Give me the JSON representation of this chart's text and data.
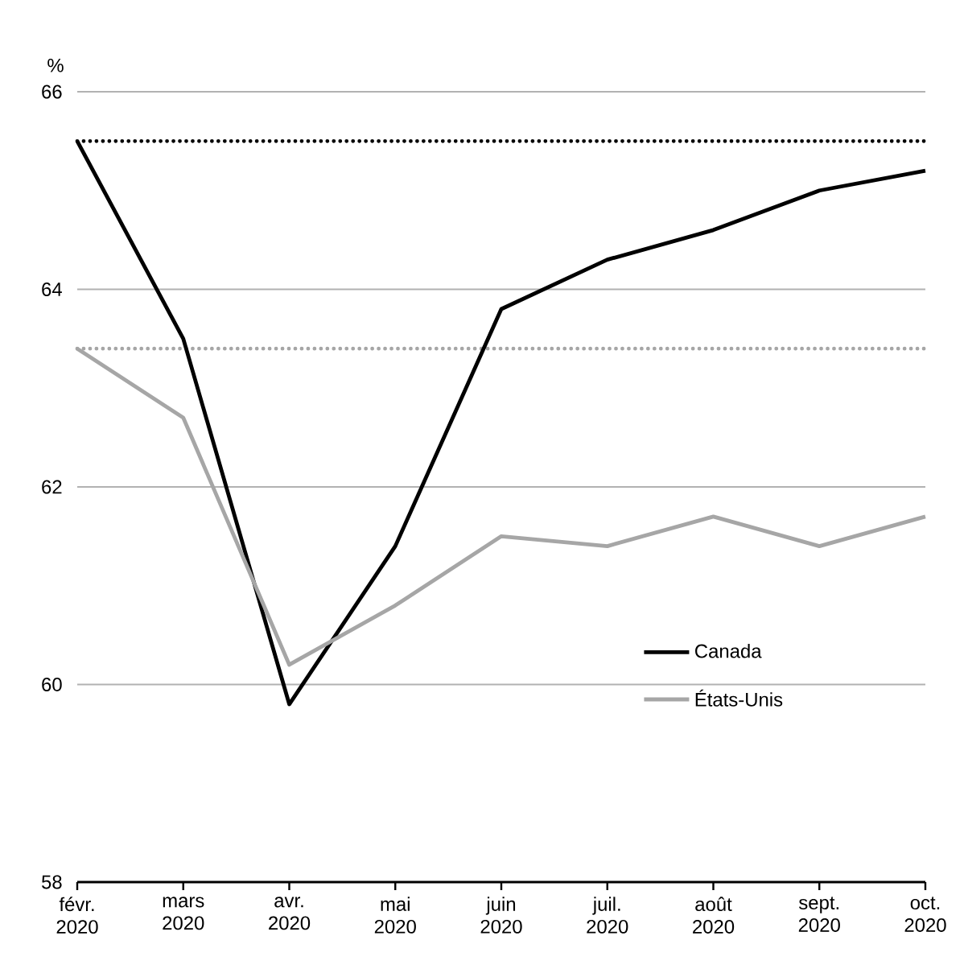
{
  "chart_data": {
    "type": "line",
    "ylabel": "%",
    "categories": [
      "févr. 2020",
      "mars 2020",
      "avr. 2020",
      "mai 2020",
      "juin 2020",
      "juil. 2020",
      "août 2020",
      "sept. 2020",
      "oct. 2020"
    ],
    "series": [
      {
        "name": "Canada",
        "color": "#000000",
        "values": [
          65.5,
          63.5,
          59.8,
          61.4,
          63.8,
          64.3,
          64.6,
          65.0,
          65.2
        ]
      },
      {
        "name": "États-Unis",
        "color": "#a6a6a6",
        "values": [
          63.4,
          62.7,
          60.2,
          60.8,
          61.5,
          61.4,
          61.7,
          61.4,
          61.7
        ]
      }
    ],
    "ylim": [
      58,
      66
    ],
    "yticks": [
      58,
      60,
      62,
      64,
      66
    ],
    "ref_lines": [
      {
        "axis": "y",
        "value": 65.5,
        "color": "#000000",
        "line_style": "dotted"
      },
      {
        "axis": "y",
        "value": 63.4,
        "color": "#a6a6a6",
        "line_style": "dotted"
      }
    ],
    "grid": "y",
    "legend": "bottom right",
    "marker": "none",
    "line_style": "solid"
  }
}
